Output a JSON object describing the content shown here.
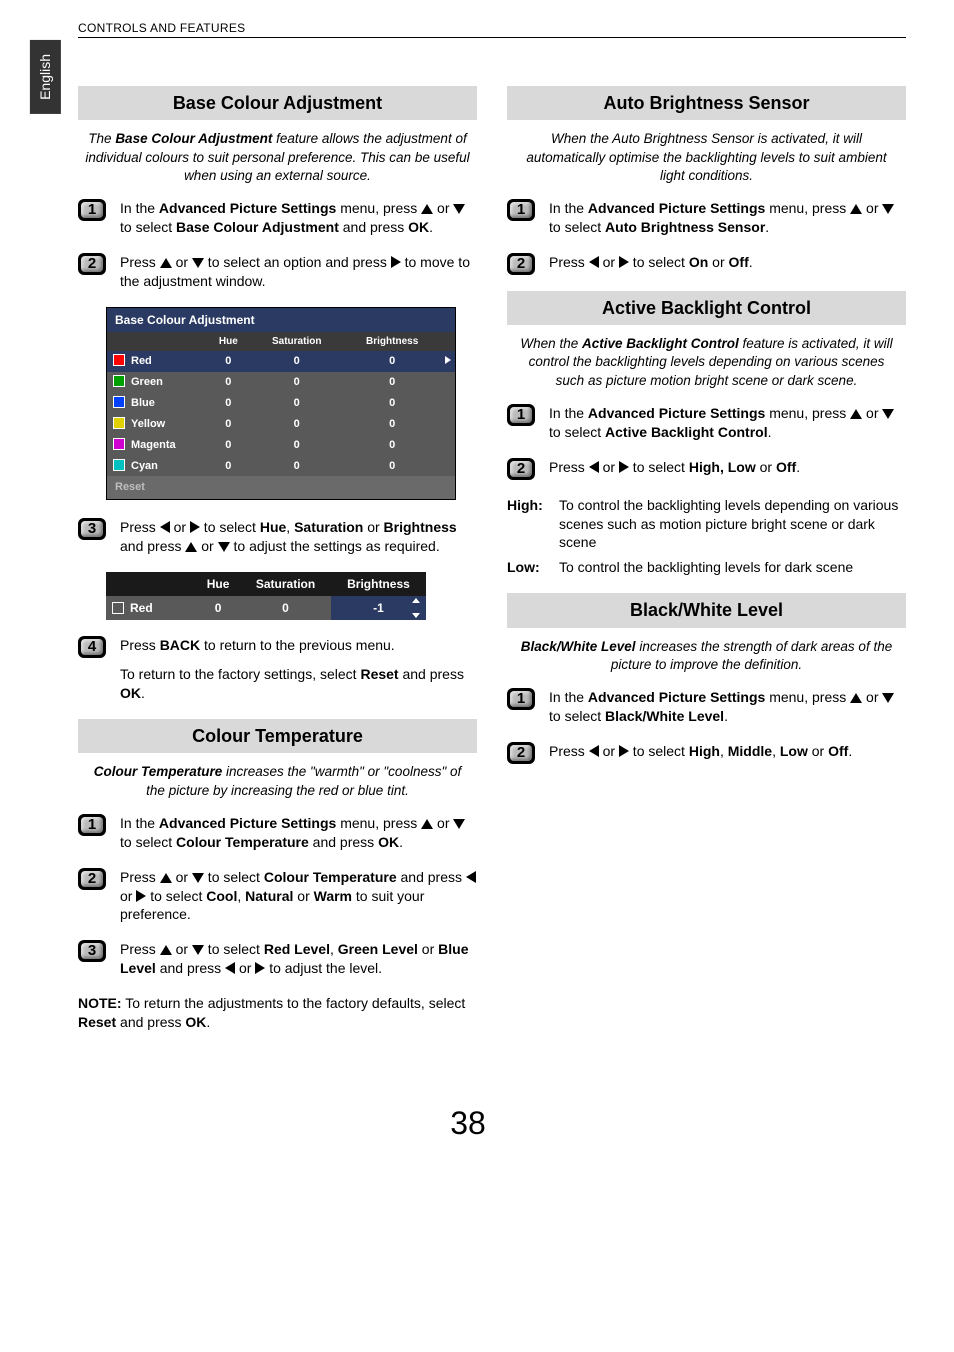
{
  "header": "CONTROLS AND FEATURES",
  "side_tab": "English",
  "page_number": "38",
  "left": {
    "s1": {
      "title": "Base Colour Adjustment",
      "intro_pre": "The ",
      "intro_b": "Base Colour Adjustment",
      "intro_post": " feature allows the adjustment of individual colours to suit personal preference. This can be useful when using an external source.",
      "step1_a": "In the ",
      "step1_b1": "Advanced Picture Settings",
      "step1_c": " menu, press ",
      "step1_d": " or ",
      "step1_e": " to select ",
      "step1_b2": "Base Colour Adjustment",
      "step1_f": " and press ",
      "step1_b3": "OK",
      "step1_g": ".",
      "step2_a": "Press ",
      "step2_b": " or ",
      "step2_c": " to select an option and press ",
      "step2_d": " to move to the adjustment window.",
      "table": {
        "title": "Base Colour Adjustment",
        "cols": [
          "Hue",
          "Saturation",
          "Brightness"
        ],
        "rows": [
          {
            "name": "Red",
            "sw": "#ff0000",
            "vals": [
              "0",
              "0",
              "0"
            ],
            "sel": true
          },
          {
            "name": "Green",
            "sw": "#00a000",
            "vals": [
              "0",
              "0",
              "0"
            ],
            "sel": false
          },
          {
            "name": "Blue",
            "sw": "#0040ff",
            "vals": [
              "0",
              "0",
              "0"
            ],
            "sel": false
          },
          {
            "name": "Yellow",
            "sw": "#e0d000",
            "vals": [
              "0",
              "0",
              "0"
            ],
            "sel": false
          },
          {
            "name": "Magenta",
            "sw": "#d000d0",
            "vals": [
              "0",
              "0",
              "0"
            ],
            "sel": false
          },
          {
            "name": "Cyan",
            "sw": "#00c0c0",
            "vals": [
              "0",
              "0",
              "0"
            ],
            "sel": false
          }
        ],
        "reset": "Reset"
      },
      "step3_a": "Press ",
      "step3_b": " or ",
      "step3_c": " to select ",
      "step3_b1": "Hue",
      "step3_d": ", ",
      "step3_b2": "Saturation",
      "step3_e": " or ",
      "step3_b3": "Brightness",
      "step3_f": " and press ",
      "step3_g": " or ",
      "step3_h": " to adjust the settings as required.",
      "mini": {
        "cols": [
          "Hue",
          "Saturation",
          "Brightness"
        ],
        "name": "Red",
        "vals": [
          "0",
          "0",
          "-1"
        ]
      },
      "step4_a": "Press ",
      "step4_b1": "BACK",
      "step4_b": " to return to the previous menu.",
      "step4_c": "To return to the factory settings, select ",
      "step4_b2": "Reset",
      "step4_d": " and press ",
      "step4_b3": "OK",
      "step4_e": "."
    },
    "s2": {
      "title": "Colour Temperature",
      "intro_b": "Colour Temperature",
      "intro_post": " increases the \"warmth\" or \"coolness\" of the picture by increasing the red or blue tint.",
      "step1_a": "In the ",
      "step1_b1": "Advanced Picture Settings",
      "step1_c": " menu, press ",
      "step1_d": " or ",
      "step1_e": " to select ",
      "step1_b2": "Colour Temperature",
      "step1_f": " and press ",
      "step1_b3": "OK",
      "step1_g": ".",
      "step2_a": "Press ",
      "step2_b": " or ",
      "step2_c": " to select ",
      "step2_b1": "Colour Temperature",
      "step2_d": " and press ",
      "step2_e": " or ",
      "step2_f": " to select ",
      "step2_b2": "Cool",
      "step2_g": ", ",
      "step2_b3": "Natural",
      "step2_h": " or ",
      "step2_b4": "Warm",
      "step2_i": " to suit your preference.",
      "step3_a": "Press ",
      "step3_b": " or ",
      "step3_c": " to select ",
      "step3_b1": "Red Level",
      "step3_d": ", ",
      "step3_b2": "Green Level",
      "step3_e": " or ",
      "step3_b3": "Blue Level",
      "step3_f": " and press ",
      "step3_g": " or ",
      "step3_h": " to adjust the level.",
      "note_a": "NOTE:",
      "note_b": " To return the adjustments to the factory defaults, select ",
      "note_b1": "Reset",
      "note_c": " and press ",
      "note_b2": "OK",
      "note_d": "."
    }
  },
  "right": {
    "s1": {
      "title": "Auto Brightness Sensor",
      "intro": "When the Auto Brightness Sensor is activated, it will automatically optimise the backlighting levels to suit ambient light conditions.",
      "step1_a": "In the ",
      "step1_b1": "Advanced Picture Settings",
      "step1_c": " menu, press ",
      "step1_d": " or ",
      "step1_e": " to select ",
      "step1_b2": "Auto Brightness Sensor",
      "step1_f": ".",
      "step2_a": "Press ",
      "step2_b": " or ",
      "step2_c": " to select ",
      "step2_b1": "On",
      "step2_d": " or ",
      "step2_b2": "Off",
      "step2_e": "."
    },
    "s2": {
      "title": "Active Backlight Control",
      "intro_a": "When the ",
      "intro_b": "Active Backlight Control",
      "intro_c": " feature is activated, it will control the backlighting levels depending on various scenes such as picture motion bright scene or dark scene.",
      "step1_a": "In the ",
      "step1_b1": "Advanced Picture Settings",
      "step1_c": " menu, press ",
      "step1_d": " or ",
      "step1_e": " to select ",
      "step1_b2": "Active Backlight Control",
      "step1_f": ".",
      "step2_a": "Press ",
      "step2_b": " or ",
      "step2_c": " to select ",
      "step2_b1": "High, Low",
      "step2_d": " or ",
      "step2_b2": "Off",
      "step2_e": ".",
      "high_l": "High:",
      "high_t": "To control the backlighting levels depending on various scenes such as motion picture bright scene or dark scene",
      "low_l": "Low:",
      "low_t": "To control the backlighting levels for dark scene"
    },
    "s3": {
      "title": "Black/White Level",
      "intro_b": "Black/White Level",
      "intro_c": " increases the strength of dark areas of the picture to improve the definition.",
      "step1_a": "In the ",
      "step1_b1": "Advanced Picture Settings",
      "step1_c": " menu, press ",
      "step1_d": " or ",
      "step1_e": " to select ",
      "step1_b2": "Black/White Level",
      "step1_f": ".",
      "step2_a": "Press ",
      "step2_b": " or ",
      "step2_c": " to select ",
      "step2_b1": "High",
      "step2_d": ", ",
      "step2_b2": "Middle",
      "step2_e": ", ",
      "step2_b3": "Low",
      "step2_f": " or ",
      "step2_b4": "Off",
      "step2_g": "."
    }
  }
}
